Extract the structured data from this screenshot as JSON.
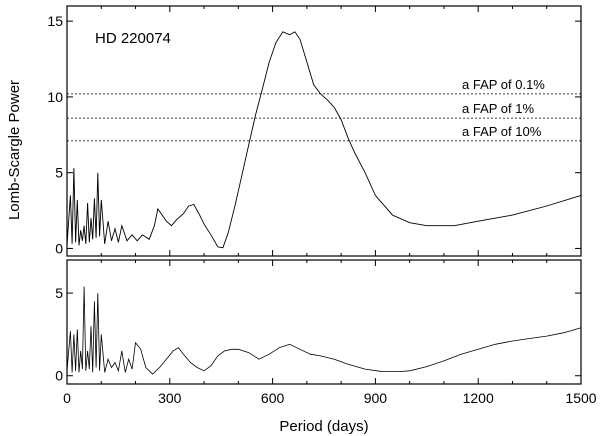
{
  "chart_data": [
    {
      "type": "line",
      "title": "HD 220074",
      "ylabel": "Lomb-Scargle Power",
      "xlabel": "",
      "xlim": [
        0,
        1500
      ],
      "ylim": [
        -0.5,
        16
      ],
      "yticks": [
        0,
        5,
        10,
        15
      ],
      "grid": false,
      "fap_lines": [
        {
          "label": "a FAP of 0.1%",
          "y": 10.2
        },
        {
          "label": "a FAP of 1%",
          "y": 8.6
        },
        {
          "label": "a FAP of 10%",
          "y": 7.1
        }
      ],
      "series": [
        {
          "x": [
            0,
            10,
            15,
            20,
            25,
            30,
            35,
            40,
            45,
            50,
            55,
            60,
            65,
            70,
            75,
            80,
            85,
            90,
            95,
            100,
            110,
            120,
            130,
            140,
            150,
            160,
            175,
            190,
            205,
            220,
            240,
            255,
            265,
            275,
            290,
            305,
            320,
            340,
            355,
            370,
            385,
            400,
            420,
            440,
            455,
            470,
            490,
            510,
            530,
            550,
            570,
            590,
            610,
            630,
            650,
            665,
            680,
            700,
            720,
            740,
            760,
            780,
            800,
            820,
            840,
            870,
            900,
            950,
            1000,
            1050,
            1100,
            1130,
            1200,
            1300,
            1400,
            1500
          ],
          "y": [
            0.2,
            3.5,
            0.3,
            5.3,
            0.4,
            3.2,
            0.2,
            1.2,
            0.5,
            1.5,
            0.3,
            3.0,
            0.4,
            2.0,
            0.6,
            3.3,
            0.7,
            5.0,
            0.8,
            3.2,
            0.3,
            1.8,
            0.5,
            1.3,
            0.4,
            1.5,
            0.5,
            0.9,
            0.5,
            0.9,
            0.6,
            1.5,
            2.6,
            2.3,
            1.8,
            1.5,
            1.9,
            2.3,
            2.8,
            2.9,
            2.3,
            1.6,
            0.9,
            0.1,
            0.05,
            1.0,
            2.8,
            4.8,
            6.8,
            8.8,
            10.5,
            12.3,
            13.6,
            14.3,
            14.1,
            14.3,
            13.8,
            12.3,
            10.8,
            10.2,
            9.8,
            9.3,
            8.5,
            7.3,
            6.3,
            5.0,
            3.5,
            2.2,
            1.7,
            1.5,
            1.5,
            1.5,
            1.8,
            2.2,
            2.8,
            3.5
          ]
        }
      ]
    },
    {
      "type": "line",
      "xlabel": "Period (days)",
      "ylabel": "",
      "xlim": [
        0,
        1500
      ],
      "ylim": [
        -0.5,
        7
      ],
      "xticks": [
        0,
        300,
        600,
        900,
        1200,
        1500
      ],
      "yticks": [
        0,
        5
      ],
      "grid": false,
      "series": [
        {
          "x": [
            0,
            10,
            15,
            20,
            25,
            30,
            35,
            40,
            45,
            50,
            55,
            60,
            65,
            70,
            75,
            80,
            85,
            90,
            95,
            100,
            110,
            120,
            130,
            140,
            150,
            160,
            170,
            180,
            190,
            200,
            215,
            230,
            250,
            270,
            290,
            310,
            325,
            340,
            360,
            380,
            400,
            420,
            440,
            460,
            480,
            500,
            530,
            560,
            590,
            620,
            650,
            680,
            710,
            740,
            780,
            820,
            870,
            920,
            970,
            1000,
            1050,
            1100,
            1150,
            1200,
            1250,
            1300,
            1350,
            1400,
            1450,
            1500
          ],
          "y": [
            0.3,
            2.7,
            0.2,
            2.5,
            0.3,
            2.8,
            0.2,
            1.5,
            0.4,
            5.4,
            0.3,
            1.5,
            0.4,
            3.0,
            0.2,
            4.5,
            0.5,
            5.0,
            0.3,
            2.5,
            0.2,
            1.0,
            0.5,
            0.8,
            0.3,
            1.5,
            0.2,
            1.0,
            0.4,
            2.0,
            1.6,
            0.5,
            0.1,
            0.5,
            1.0,
            1.5,
            1.7,
            1.3,
            0.8,
            0.5,
            0.3,
            0.6,
            1.2,
            1.5,
            1.6,
            1.6,
            1.4,
            1.0,
            1.3,
            1.7,
            1.9,
            1.6,
            1.3,
            1.2,
            1.0,
            0.7,
            0.4,
            0.25,
            0.25,
            0.3,
            0.55,
            0.9,
            1.3,
            1.6,
            1.9,
            2.1,
            2.25,
            2.4,
            2.6,
            2.9
          ]
        }
      ]
    }
  ]
}
